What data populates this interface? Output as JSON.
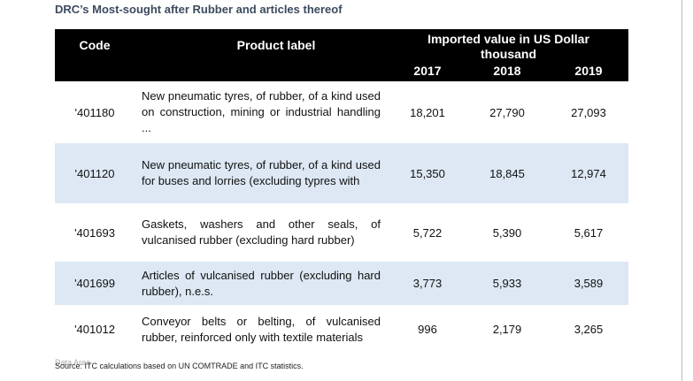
{
  "title": "DRC’s Most-sought after Rubber and articles thereof",
  "table": {
    "header": {
      "code": "Code",
      "product": "Product label",
      "value_group": "Imported value in US Dollar thousand",
      "years": [
        "2017",
        "2018",
        "2019"
      ]
    },
    "rows": [
      [
        "'401180",
        "New pneumatic tyres, of rubber, of a kind used on construction, mining or industrial handling ...",
        "18,201",
        "27,790",
        "27,093"
      ],
      [
        "'401120",
        "New pneumatic tyres, of rubber, of a kind used for buses and lorries (excluding typres with",
        "15,350",
        "18,845",
        "12,974"
      ],
      [
        "'401693",
        "Gaskets, washers and other seals, of vulcanised rubber (excluding hard rubber)",
        "5,722",
        "5,390",
        "5,617"
      ],
      [
        "'401699",
        "Articles of vulcanised rubber (excluding hard rubber), n.e.s.",
        "3,773",
        "5,933",
        "3,589"
      ],
      [
        "'401012",
        "Conveyor belts or belting, of vulcanised rubber, reinforced only with textile materials",
        "996",
        "2,179",
        "3,265"
      ]
    ]
  },
  "data_area_label": "Data Area",
  "source": "Source: ITC calculations based on UN COMTRADE and ITC statistics."
}
